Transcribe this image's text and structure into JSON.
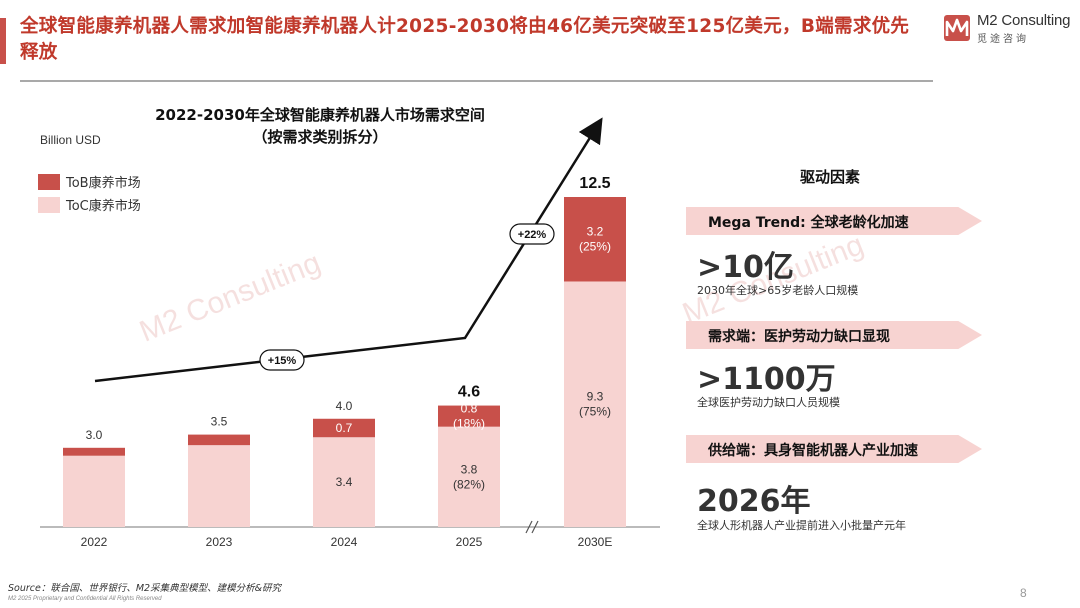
{
  "header": {
    "title": "全球智能康养机器人需求加智能康养机器人计2025-2030将由46亿美元突破至125亿美元，B端需求优先释放",
    "logo_name": "M2 Consulting",
    "logo_sub": "觅途咨询"
  },
  "colors": {
    "accent": "#c0392b",
    "tob": "#c8504a",
    "toc": "#f7d3d1",
    "banner": "#f7d3d1"
  },
  "chart_data": {
    "type": "bar",
    "stacked": true,
    "title": "2022-2030年全球智能康养机器人市场需求空间",
    "subtitle": "（按需求类别拆分）",
    "ylabel": "Billion USD",
    "categories": [
      "2022",
      "2023",
      "2024",
      "2025",
      "2030E"
    ],
    "series": [
      {
        "name": "ToC康养市场",
        "values": [
          2.7,
          3.1,
          3.4,
          3.8,
          9.3
        ],
        "labels": [
          "",
          "",
          "3.4",
          "3.8\n(82%)",
          "9.3\n(75%)"
        ]
      },
      {
        "name": "ToB康养市场",
        "values": [
          0.3,
          0.4,
          0.7,
          0.8,
          3.2
        ],
        "labels": [
          "",
          "",
          "0.7",
          "0.8\n(18%)",
          "3.2\n(25%)"
        ]
      }
    ],
    "totals": [
      "3.0",
      "3.5",
      "4.0",
      "4.6",
      "12.5"
    ],
    "bold_totals": [
      false,
      false,
      false,
      true,
      true
    ],
    "axis_break_between": [
      "2025",
      "2030E"
    ],
    "growth_annotations": [
      "+15%",
      "+22%"
    ]
  },
  "drivers": {
    "heading": "驱动因素",
    "items": [
      {
        "banner": "Mega Trend: 全球老龄化加速",
        "value": ">10亿",
        "desc": "2030年全球>65岁老龄人口规模"
      },
      {
        "banner": "需求端：医护劳动力缺口显现",
        "value": ">1100万",
        "desc": "全球医护劳动力缺口人员规模"
      },
      {
        "banner": "供给端：具身智能机器人产业加速",
        "value": "2026年",
        "desc": "全球人形机器人产业提前进入小批量产元年"
      }
    ]
  },
  "footer": {
    "source": "Source：联合国、世界银行、M2采集典型模型、建模分析&研究",
    "confidential": "M2 2025 Proprietary and Confidential All Rights Reserved",
    "page": "8"
  }
}
